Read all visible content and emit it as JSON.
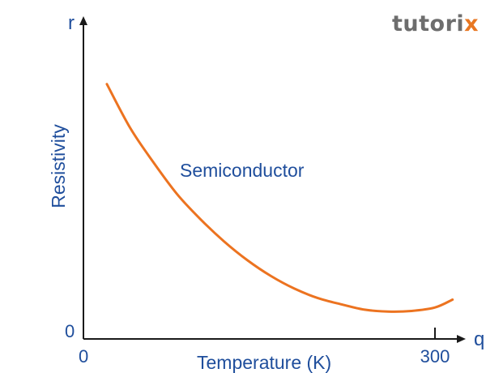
{
  "logo": {
    "text": "tutorix"
  },
  "colors": {
    "axis": "#1a1a1a",
    "label": "#1f4e9c",
    "curve": "#ec7320"
  },
  "chart_data": {
    "type": "line",
    "title": "",
    "xlabel": "Temperature (K)",
    "ylabel": "Resistivity",
    "x_axis_symbol": "q",
    "y_axis_symbol": "r",
    "x_origin_label": "0",
    "y_origin_label": "0",
    "x_ticks": [
      {
        "value": 300,
        "label": "300"
      }
    ],
    "xlim": [
      0,
      320
    ],
    "ylim": [
      0,
      1
    ],
    "grid": false,
    "legend": "none",
    "series": [
      {
        "name": "Semiconductor",
        "x": [
          20,
          40,
          60,
          80,
          100,
          120,
          140,
          160,
          180,
          200,
          220,
          240,
          260,
          280,
          300,
          315
        ],
        "y": [
          0.81,
          0.67,
          0.56,
          0.46,
          0.38,
          0.31,
          0.25,
          0.2,
          0.16,
          0.13,
          0.11,
          0.093,
          0.087,
          0.089,
          0.1,
          0.125
        ]
      }
    ]
  }
}
